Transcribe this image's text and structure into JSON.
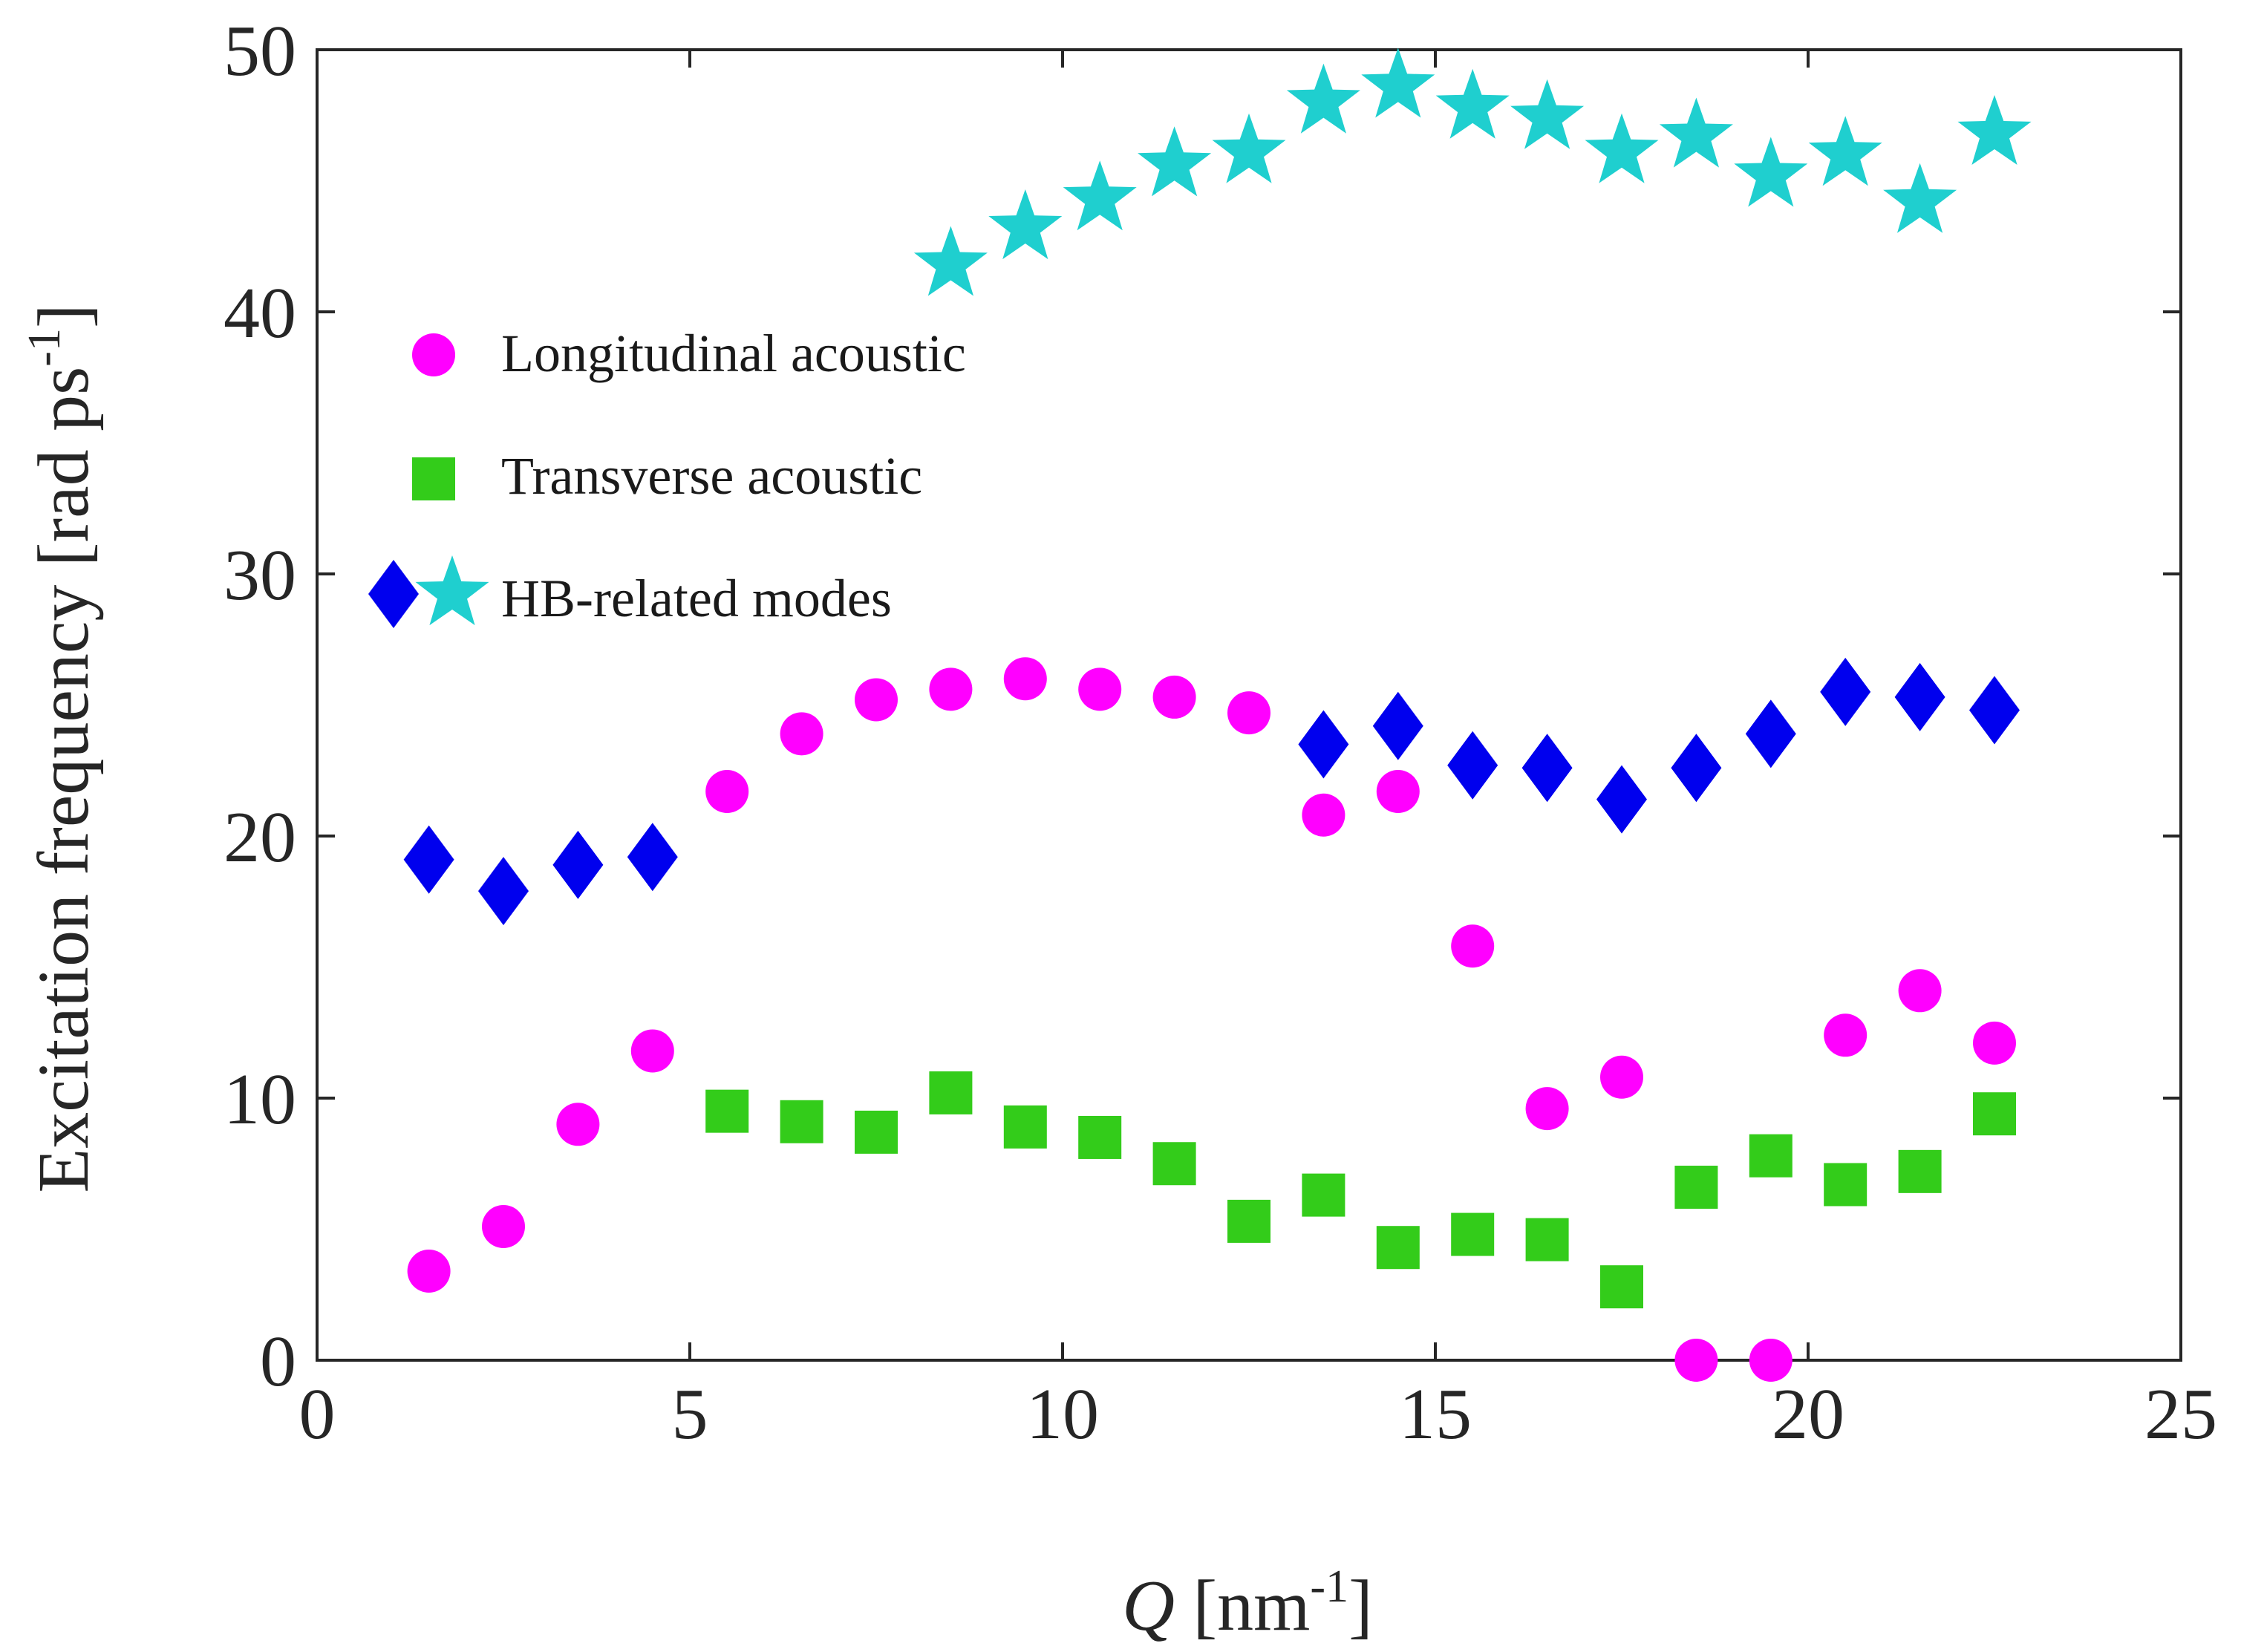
{
  "chart_data": {
    "type": "scatter",
    "title": "",
    "xlabel": {
      "symbol": "Q",
      "rest": " [nm",
      "sup": "-1",
      "close": "]"
    },
    "ylabel": {
      "main": "Excitation frequency [rad ps",
      "sup": "-1",
      "close": "]"
    },
    "xlim": [
      0,
      25
    ],
    "ylim": [
      0,
      50
    ],
    "xticks": [
      0,
      5,
      10,
      15,
      20,
      25
    ],
    "yticks": [
      0,
      10,
      20,
      30,
      40,
      50
    ],
    "xtick_labels": [
      "0",
      "5",
      "10",
      "15",
      "20",
      "25"
    ],
    "ytick_labels": [
      "0",
      "10",
      "20",
      "30",
      "40",
      "50"
    ],
    "grid": false,
    "legend_position": "upper-left",
    "series": [
      {
        "name": "Longitudinal acoustic",
        "marker": "circle",
        "color": "#ff00ff",
        "x": [
          1.5,
          2.5,
          3.5,
          4.5,
          5.5,
          6.5,
          7.5,
          8.5,
          9.5,
          10.5,
          11.5,
          12.5,
          13.5,
          14.5,
          15.5,
          16.5,
          17.5,
          18.5,
          19.5,
          20.5,
          21.5,
          22.5
        ],
        "y": [
          3.4,
          5.1,
          9.0,
          11.8,
          21.7,
          23.9,
          25.2,
          25.6,
          26.0,
          25.6,
          25.3,
          24.7,
          20.8,
          21.7,
          15.8,
          9.6,
          10.8,
          0.0,
          0.0,
          12.4,
          14.1,
          12.1
        ]
      },
      {
        "name": "Transverse acoustic",
        "marker": "square",
        "color": "#33cc1a",
        "x": [
          5.5,
          6.5,
          7.5,
          8.5,
          9.5,
          10.5,
          11.5,
          12.5,
          13.5,
          14.5,
          15.5,
          16.5,
          17.5,
          18.5,
          19.5,
          20.5,
          21.5,
          22.5
        ],
        "y": [
          9.5,
          9.1,
          8.7,
          10.2,
          8.9,
          8.5,
          7.5,
          5.3,
          6.3,
          4.3,
          4.8,
          4.6,
          2.8,
          6.6,
          7.8,
          6.7,
          7.2,
          9.4
        ]
      },
      {
        "name": "HB-related modes (diamond)",
        "marker": "diamond",
        "color": "#0000ee",
        "x": [
          1.5,
          2.5,
          3.5,
          4.5,
          13.5,
          14.5,
          15.5,
          16.5,
          17.5,
          18.5,
          19.5,
          20.5,
          21.5,
          22.5
        ],
        "y": [
          19.1,
          17.9,
          18.9,
          19.2,
          23.5,
          24.2,
          22.7,
          22.6,
          21.4,
          22.6,
          23.9,
          25.5,
          25.3,
          24.8
        ]
      },
      {
        "name": "HB-related modes (star)",
        "marker": "star",
        "color": "#1fcfcf",
        "x": [
          8.5,
          9.5,
          10.5,
          11.5,
          12.5,
          13.5,
          14.5,
          15.5,
          16.5,
          17.5,
          18.5,
          19.5,
          20.5,
          21.5,
          22.5
        ],
        "y": [
          41.8,
          43.2,
          44.3,
          45.6,
          46.1,
          48.0,
          48.6,
          47.8,
          47.4,
          46.1,
          46.7,
          45.2,
          46.0,
          44.2,
          46.8
        ]
      }
    ],
    "legend": [
      {
        "label": "Longitudinal acoustic",
        "markers": [
          "circle"
        ]
      },
      {
        "label": "Transverse acoustic",
        "markers": [
          "square"
        ]
      },
      {
        "label": "HB-related modes",
        "markers": [
          "diamond",
          "star"
        ]
      }
    ]
  }
}
